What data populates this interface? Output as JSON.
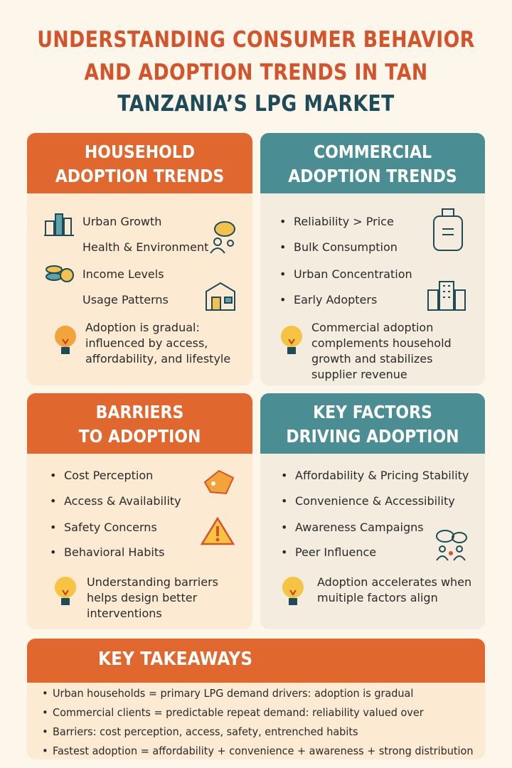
{
  "title": {
    "line1": "UNDERSTANDING CONSUMER BEHAVIOR",
    "line2": "AND ADOPTION TRENDS IN TAN",
    "line3": "TANZANIA’S LPG MARKET"
  },
  "colors": {
    "orange": "#E0682F",
    "teal": "#4A8E93",
    "title_orange": "#D4532B",
    "title_teal": "#1E4B57",
    "background": "#FDF6EA"
  },
  "household": {
    "title1": "HOUSEHOLD",
    "title2": "ADOPTION TRENDS",
    "items": [
      "Urban Growth",
      "Health & Environment",
      "Income Levels",
      "Usage Patterns"
    ],
    "icons": [
      "buildings-icon",
      "leaf-people-icon",
      "coins-icon",
      "house-icon",
      "lightbulb-icon"
    ],
    "note": "Adoption is gradual: influenced by access, affordability, and lifestyle"
  },
  "commercial": {
    "title1": "COMMERCIAL",
    "title2": "ADOPTION TRENDS",
    "items": [
      "Reliability > Price",
      "Bulk Consumption",
      "Urban Concentration",
      "Early Adopters"
    ],
    "icons": [
      "gas-cylinder-icon",
      "office-building-icon",
      "lightbulb-icon"
    ],
    "note": "Commercial adoption complements household growth and stabilizes supplier revenue"
  },
  "barriers": {
    "title1": "BARRIERS",
    "title2": "TO ADOPTION",
    "items": [
      "Cost Perception",
      "Access & Availability",
      "Safety Concerns",
      "Behavioral Habits"
    ],
    "icons": [
      "price-tag-icon",
      "warning-icon",
      "lightbulb-icon"
    ],
    "note": "Understanding barriers helps design better interventions"
  },
  "factors": {
    "title1": "KEY FACTORS",
    "title2": "DRIVING ADOPTION",
    "items": [
      "Affordability & Pricing Stability",
      "Convenience & Accessibility",
      "Awareness Campaigns",
      "Peer Influence"
    ],
    "icons": [
      "people-chat-icon",
      "lightbulb-icon"
    ],
    "note": "Adoption accelerates when muitiple factors align"
  },
  "takeaways": {
    "title": "KEY TAKEAWAYS",
    "items": [
      "Urban households = primary LPG demand drivers: adoption is gradual",
      "Commercial clients = predictable repeat demand: reliability valued over",
      "Barriers: cost perception, access, safety, entrenched habits",
      "Fastest adoption = affordability + convenience + awareness + strong distribution"
    ]
  }
}
